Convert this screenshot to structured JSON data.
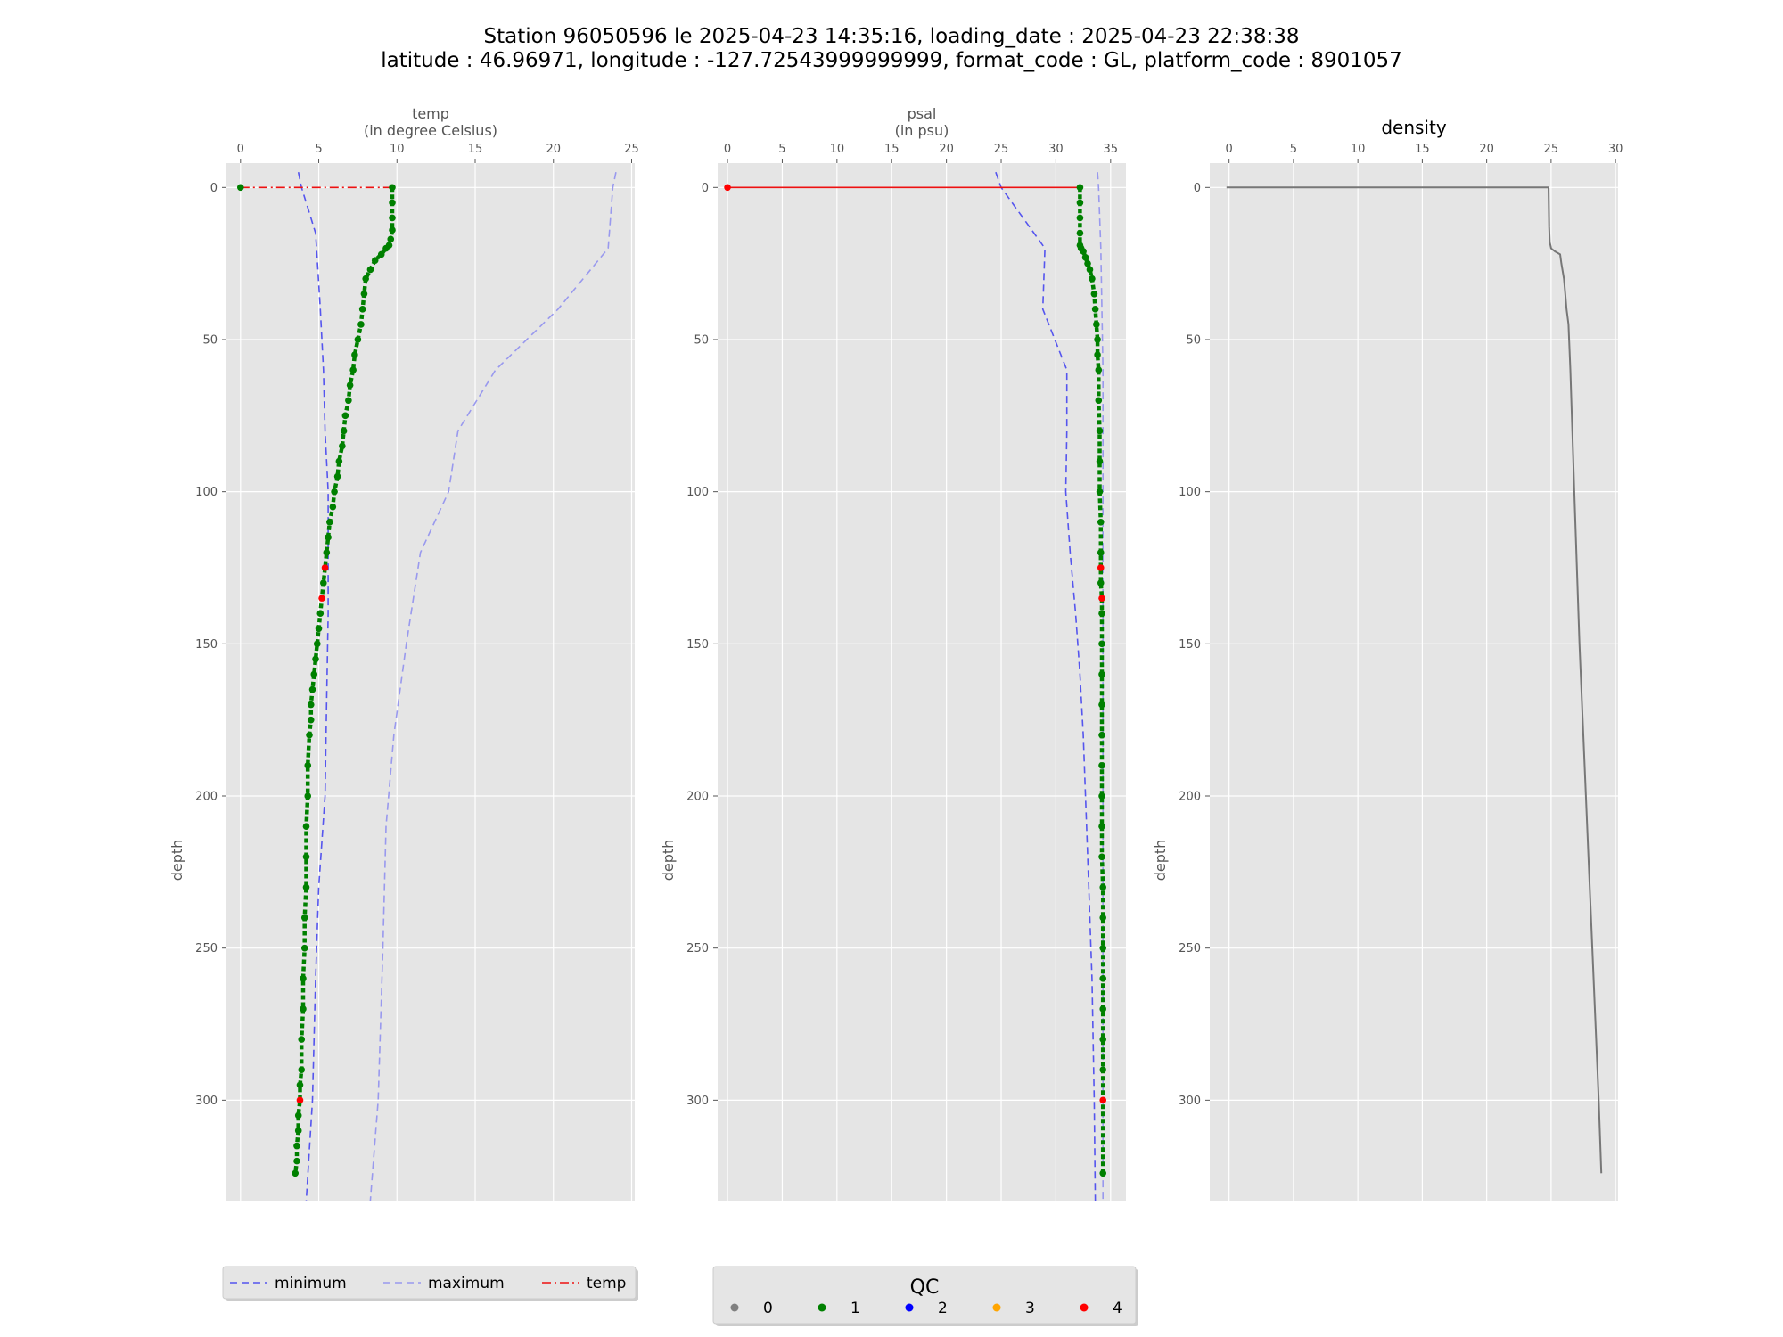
{
  "title": {
    "line1": "Station 96050596 le 2025-04-23 14:35:16, loading_date : 2025-04-23 22:38:38",
    "line2": "latitude : 46.96971, longitude : -127.72543999999999, format_code : GL, platform_code : 8901057"
  },
  "colors": {
    "background": "#e5e5e5",
    "grid": "#ffffff",
    "minimum": "#5555ee",
    "maximum": "#9999ee",
    "measure": "#ee1111",
    "density": "#777777",
    "qc": {
      "0": "#808080",
      "1": "#008000",
      "2": "#0000ff",
      "3": "#ffa500",
      "4": "#ff0000"
    }
  },
  "chart_data": [
    {
      "type": "line",
      "title": "temp",
      "subtitle": "(in degree Celsius)",
      "ylabel": "depth",
      "xlim": [
        -0.9,
        25.2
      ],
      "ylim": [
        333,
        -8
      ],
      "xticks": [
        0,
        5,
        10,
        15,
        20,
        25
      ],
      "yticks": [
        0,
        50,
        100,
        150,
        200,
        250,
        300
      ],
      "grid": true,
      "series": [
        {
          "name": "minimum",
          "style": "dashed",
          "x": [
            3.7,
            3.9,
            4.8,
            5.1,
            5.3,
            5.4,
            5.6,
            5.6,
            5.5,
            5.4,
            5.0,
            4.8,
            4.6,
            4.2
          ],
          "y": [
            -5,
            0,
            15,
            40,
            60,
            80,
            100,
            140,
            170,
            200,
            230,
            260,
            300,
            333
          ]
        },
        {
          "name": "maximum",
          "style": "dashed",
          "x": [
            24.0,
            23.8,
            23.5,
            20.3,
            16.3,
            13.9,
            13.3,
            11.5,
            10.6,
            9.8,
            9.3,
            9.1,
            8.8,
            8.3
          ],
          "y": [
            -5,
            0,
            20,
            40,
            60,
            80,
            100,
            120,
            150,
            180,
            210,
            250,
            300,
            333
          ]
        },
        {
          "name": "temp",
          "style": "dashdot",
          "x": [
            0.0,
            9.7
          ],
          "y": [
            0,
            0
          ]
        }
      ],
      "profile": {
        "x": [
          9.7,
          9.7,
          9.7,
          9.7,
          9.6,
          9.5,
          9.3,
          9.0,
          8.6,
          8.3,
          8.0,
          7.9,
          7.8,
          7.7,
          7.5,
          7.3,
          7.2,
          7.0,
          6.9,
          6.7,
          6.6,
          6.5,
          6.3,
          6.2,
          6.0,
          5.9,
          5.7,
          5.6,
          5.5,
          5.4,
          5.3,
          5.2,
          5.1,
          5.0,
          4.9,
          4.8,
          4.7,
          4.6,
          4.5,
          4.5,
          4.4,
          4.3,
          4.3,
          4.2,
          4.2,
          4.2,
          4.1,
          4.1,
          4.0,
          4.0,
          3.9,
          3.9,
          3.8,
          3.8,
          3.7,
          3.7,
          3.6,
          3.6,
          3.5
        ],
        "y": [
          0,
          5,
          10,
          14,
          17,
          19,
          20,
          22,
          24,
          27,
          30,
          35,
          40,
          45,
          50,
          55,
          60,
          65,
          70,
          75,
          80,
          85,
          90,
          95,
          100,
          105,
          110,
          115,
          120,
          125,
          130,
          135,
          140,
          145,
          150,
          155,
          160,
          165,
          170,
          175,
          180,
          190,
          200,
          210,
          220,
          230,
          240,
          250,
          260,
          270,
          280,
          290,
          295,
          300,
          305,
          310,
          315,
          320,
          324
        ],
        "qc": [
          1,
          1,
          1,
          1,
          1,
          1,
          1,
          1,
          1,
          1,
          1,
          1,
          1,
          1,
          1,
          1,
          1,
          1,
          1,
          1,
          1,
          1,
          1,
          1,
          1,
          1,
          1,
          1,
          1,
          4,
          1,
          4,
          1,
          1,
          1,
          1,
          1,
          1,
          1,
          1,
          1,
          1,
          1,
          1,
          1,
          1,
          1,
          1,
          1,
          1,
          1,
          1,
          1,
          4,
          1,
          1,
          1,
          1,
          1
        ]
      },
      "surface_point": {
        "x": 0.0,
        "y": 0,
        "qc": 1
      }
    },
    {
      "type": "line",
      "title": "psal",
      "subtitle": "(in psu)",
      "ylabel": "depth",
      "xlim": [
        -0.9,
        36.4
      ],
      "ylim": [
        333,
        -8
      ],
      "xticks": [
        0,
        5,
        10,
        15,
        20,
        25,
        30,
        35
      ],
      "yticks": [
        0,
        50,
        100,
        150,
        200,
        250,
        300
      ],
      "grid": true,
      "series": [
        {
          "name": "minimum",
          "style": "dashed",
          "x": [
            24.5,
            25.0,
            29.0,
            28.8,
            31.0,
            31.0,
            30.9,
            31.3,
            31.8,
            32.2,
            32.5,
            32.7,
            33.0,
            33.3,
            33.5,
            33.6
          ],
          "y": [
            -5,
            0,
            20,
            40,
            60,
            80,
            100,
            120,
            140,
            160,
            180,
            200,
            230,
            260,
            300,
            333
          ]
        },
        {
          "name": "maximum",
          "style": "dashed",
          "x": [
            33.8,
            33.9,
            34.1,
            34.2,
            34.3,
            34.3,
            34.3,
            34.3,
            34.3
          ],
          "y": [
            -5,
            0,
            20,
            40,
            60,
            100,
            150,
            250,
            333
          ]
        },
        {
          "name": "psal",
          "style": "solid",
          "x": [
            0.0,
            32.2
          ],
          "y": [
            0,
            0
          ]
        }
      ],
      "profile": {
        "x": [
          32.2,
          32.2,
          32.2,
          32.2,
          32.2,
          32.3,
          32.5,
          32.7,
          32.9,
          33.1,
          33.3,
          33.5,
          33.6,
          33.7,
          33.8,
          33.8,
          33.9,
          33.9,
          34.0,
          34.0,
          34.0,
          34.1,
          34.1,
          34.1,
          34.1,
          34.2,
          34.2,
          34.2,
          34.2,
          34.2,
          34.2,
          34.2,
          34.2,
          34.2,
          34.2,
          34.3,
          34.3,
          34.3,
          34.3,
          34.3,
          34.3,
          34.3,
          34.3,
          34.3
        ],
        "y": [
          0,
          5,
          10,
          15,
          19,
          20,
          21,
          23,
          25,
          27,
          30,
          35,
          40,
          45,
          50,
          55,
          60,
          70,
          80,
          90,
          100,
          110,
          120,
          125,
          130,
          135,
          140,
          150,
          160,
          170,
          180,
          190,
          200,
          210,
          220,
          230,
          240,
          250,
          260,
          270,
          280,
          290,
          300,
          324
        ],
        "qc": [
          1,
          1,
          1,
          1,
          1,
          1,
          1,
          1,
          1,
          1,
          1,
          1,
          1,
          1,
          1,
          1,
          1,
          1,
          1,
          1,
          1,
          1,
          1,
          4,
          1,
          4,
          1,
          1,
          1,
          1,
          1,
          1,
          1,
          1,
          1,
          1,
          1,
          1,
          1,
          1,
          1,
          1,
          4,
          1
        ]
      },
      "surface_point": {
        "x": 0.0,
        "y": 0,
        "qc": 4
      }
    },
    {
      "type": "line",
      "title": "density",
      "ylabel": "depth",
      "xlim": [
        -1.5,
        30.2
      ],
      "ylim": [
        333,
        -8
      ],
      "xticks": [
        0,
        5,
        10,
        15,
        20,
        25,
        30
      ],
      "yticks": [
        0,
        50,
        100,
        150,
        200,
        250,
        300
      ],
      "grid": true,
      "series": [
        {
          "name": "density",
          "style": "solid",
          "x": [
            -0.2,
            24.8,
            24.85,
            24.9,
            25.0,
            25.3,
            25.7,
            25.8,
            26.0,
            26.1,
            26.2,
            26.35,
            26.5,
            26.8,
            27.2,
            27.7,
            28.2,
            28.7,
            28.9
          ],
          "y": [
            0,
            0,
            13,
            18,
            20,
            21,
            22,
            25,
            30,
            35,
            40,
            45,
            60,
            100,
            150,
            200,
            250,
            300,
            324
          ]
        }
      ]
    }
  ],
  "legend_main": {
    "items": [
      {
        "label": "minimum",
        "style": "dashed",
        "color": "#5555ee"
      },
      {
        "label": "maximum",
        "style": "dashed",
        "color": "#9999ee"
      },
      {
        "label": "temp",
        "style": "dashdot",
        "color": "#ee1111"
      }
    ]
  },
  "legend_qc": {
    "title": "QC",
    "items": [
      {
        "label": "0",
        "color": "#808080"
      },
      {
        "label": "1",
        "color": "#008000"
      },
      {
        "label": "2",
        "color": "#0000ff"
      },
      {
        "label": "3",
        "color": "#ffa500"
      },
      {
        "label": "4",
        "color": "#ff0000"
      }
    ]
  }
}
